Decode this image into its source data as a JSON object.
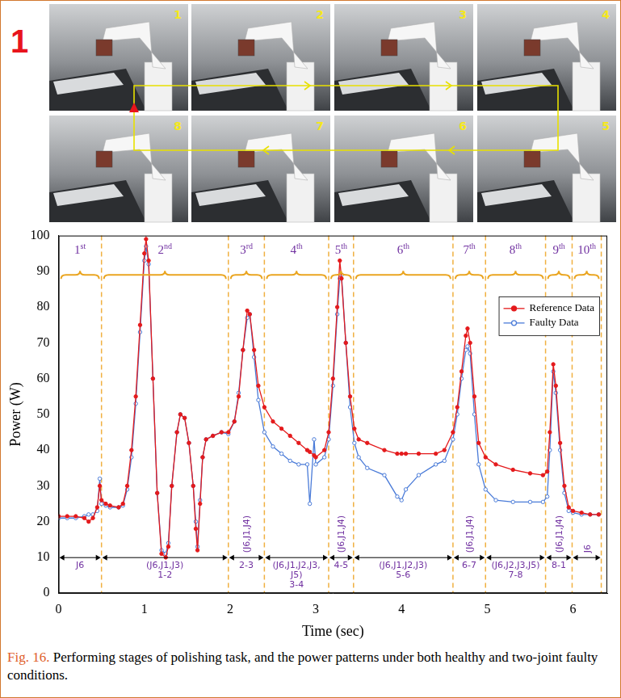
{
  "figure_label": "1",
  "panels": [
    "1",
    "2",
    "3",
    "4",
    "5",
    "6",
    "7",
    "8"
  ],
  "chart_data": {
    "type": "line",
    "x_label": "Time (sec)",
    "y_label": "Power (W)",
    "xlim": [
      0,
      6.4
    ],
    "xticks": [
      0,
      1,
      2,
      3,
      4,
      5,
      6
    ],
    "ylim": [
      0,
      100
    ],
    "yticks": [
      0,
      10,
      20,
      30,
      40,
      50,
      60,
      70,
      80,
      90,
      100
    ],
    "grid": false,
    "legend": "upper right",
    "x": [
      0,
      0.1,
      0.2,
      0.3,
      0.35,
      0.4,
      0.45,
      0.48,
      0.5,
      0.55,
      0.6,
      0.7,
      0.75,
      0.8,
      0.85,
      0.9,
      0.95,
      1.0,
      1.02,
      1.05,
      1.1,
      1.15,
      1.2,
      1.25,
      1.28,
      1.32,
      1.38,
      1.42,
      1.47,
      1.52,
      1.57,
      1.6,
      1.62,
      1.65,
      1.68,
      1.72,
      1.8,
      1.9,
      1.98,
      2.05,
      2.1,
      2.15,
      2.2,
      2.23,
      2.28,
      2.33,
      2.4,
      2.5,
      2.6,
      2.7,
      2.8,
      2.9,
      2.93,
      2.98,
      3.0,
      3.1,
      3.15,
      3.2,
      3.25,
      3.28,
      3.3,
      3.35,
      3.4,
      3.45,
      3.5,
      3.6,
      3.8,
      3.95,
      4.0,
      4.05,
      4.2,
      4.4,
      4.5,
      4.6,
      4.65,
      4.7,
      4.75,
      4.77,
      4.8,
      4.85,
      4.9,
      4.98,
      5.1,
      5.3,
      5.5,
      5.65,
      5.7,
      5.73,
      5.77,
      5.8,
      5.85,
      5.9,
      5.95,
      6.0,
      6.1,
      6.2,
      6.3
    ],
    "series": [
      {
        "name": "Reference Data",
        "color": "#e41a1c",
        "marker": "circle",
        "line_style": "solid",
        "values": [
          21.5,
          21.5,
          21.5,
          21,
          20,
          21,
          24,
          30,
          26,
          25,
          24.5,
          24,
          25,
          30,
          40,
          55,
          75,
          95,
          99,
          93,
          60,
          28,
          11,
          10,
          13,
          30,
          45,
          50,
          49,
          42,
          30,
          18,
          12,
          25,
          38,
          43,
          44,
          45,
          45,
          48,
          55,
          68,
          79,
          78,
          68,
          58,
          52,
          48,
          46,
          44,
          42,
          40,
          39.5,
          38.5,
          38,
          40,
          45,
          60,
          80,
          93,
          88,
          70,
          55,
          46,
          43,
          42,
          40,
          39,
          39,
          39,
          39,
          39,
          40,
          45,
          52,
          62,
          72,
          74,
          70,
          55,
          42,
          38,
          36,
          34.5,
          33.5,
          33,
          34,
          45,
          64,
          58,
          42,
          30,
          24,
          23,
          22.5,
          22,
          22
        ]
      },
      {
        "name": "Faulty Data",
        "color": "#4a7bd8",
        "marker": "open_circle",
        "line_style": "solid",
        "values": [
          21,
          21,
          21,
          21.5,
          22,
          22,
          23,
          32,
          25,
          24.5,
          24,
          24,
          24.5,
          29,
          38,
          53,
          73,
          93,
          97,
          92,
          60,
          28,
          12,
          11,
          14,
          30,
          45,
          50,
          49,
          42,
          30,
          20,
          13,
          26,
          38,
          43,
          44,
          45,
          44.5,
          48,
          56,
          68,
          77,
          78,
          66,
          54,
          45,
          41,
          39,
          37,
          36,
          36,
          25,
          43,
          36,
          38,
          43,
          58,
          78,
          88,
          89,
          70,
          52,
          42,
          38,
          35,
          33,
          27,
          26,
          29,
          33,
          36,
          37,
          43,
          50,
          60,
          68,
          69,
          67,
          50,
          36,
          29,
          26,
          25.5,
          25.5,
          25.5,
          27,
          40,
          62,
          56,
          40,
          28,
          23,
          22.5,
          22,
          22,
          22
        ]
      }
    ],
    "stages": [
      {
        "label": "1st",
        "start": 0,
        "end": 0.5
      },
      {
        "label": "2nd",
        "start": 0.5,
        "end": 1.98
      },
      {
        "label": "3rd",
        "start": 1.98,
        "end": 2.4
      },
      {
        "label": "4th",
        "start": 2.4,
        "end": 3.15
      },
      {
        "label": "5th",
        "start": 3.15,
        "end": 3.44
      },
      {
        "label": "6th",
        "start": 3.44,
        "end": 4.6
      },
      {
        "label": "7th",
        "start": 4.6,
        "end": 4.98
      },
      {
        "label": "8th",
        "start": 4.98,
        "end": 5.68
      },
      {
        "label": "9th",
        "start": 5.68,
        "end": 5.99
      },
      {
        "label": "10th",
        "start": 5.99,
        "end": 6.33
      }
    ],
    "joint_segments": [
      {
        "joints": "J6",
        "start": 0,
        "end": 0.5
      },
      {
        "joints": "(J6,J1,J3)",
        "segment": "1-2",
        "start": 0.5,
        "end": 1.98
      },
      {
        "joints": "(J6,J1,J4)",
        "segment": "2-3",
        "start": 1.98,
        "end": 2.4
      },
      {
        "joints": "(J6,J1,J2,J3,J5)",
        "segment": "3-4",
        "start": 2.4,
        "end": 3.15
      },
      {
        "joints": "(J6,J1,J4)",
        "segment": "4-5",
        "start": 3.15,
        "end": 3.44
      },
      {
        "joints": "(J6,J1,J2,J3)",
        "segment": "5-6",
        "start": 3.44,
        "end": 4.6
      },
      {
        "joints": "(J6,J1,J4)",
        "segment": "6-7",
        "start": 4.6,
        "end": 4.98
      },
      {
        "joints": "(J6,J2,J3,J5)",
        "segment": "7-8",
        "start": 4.98,
        "end": 5.68
      },
      {
        "joints": "(J6,J1,J4)",
        "segment": "8-1",
        "start": 5.68,
        "end": 5.99
      },
      {
        "joints": "J6",
        "start": 5.99,
        "end": 6.33
      }
    ]
  },
  "caption": {
    "label": "Fig. 16.",
    "text": "Performing stages of polishing task, and the power patterns under both healthy and two-joint faulty conditions."
  }
}
